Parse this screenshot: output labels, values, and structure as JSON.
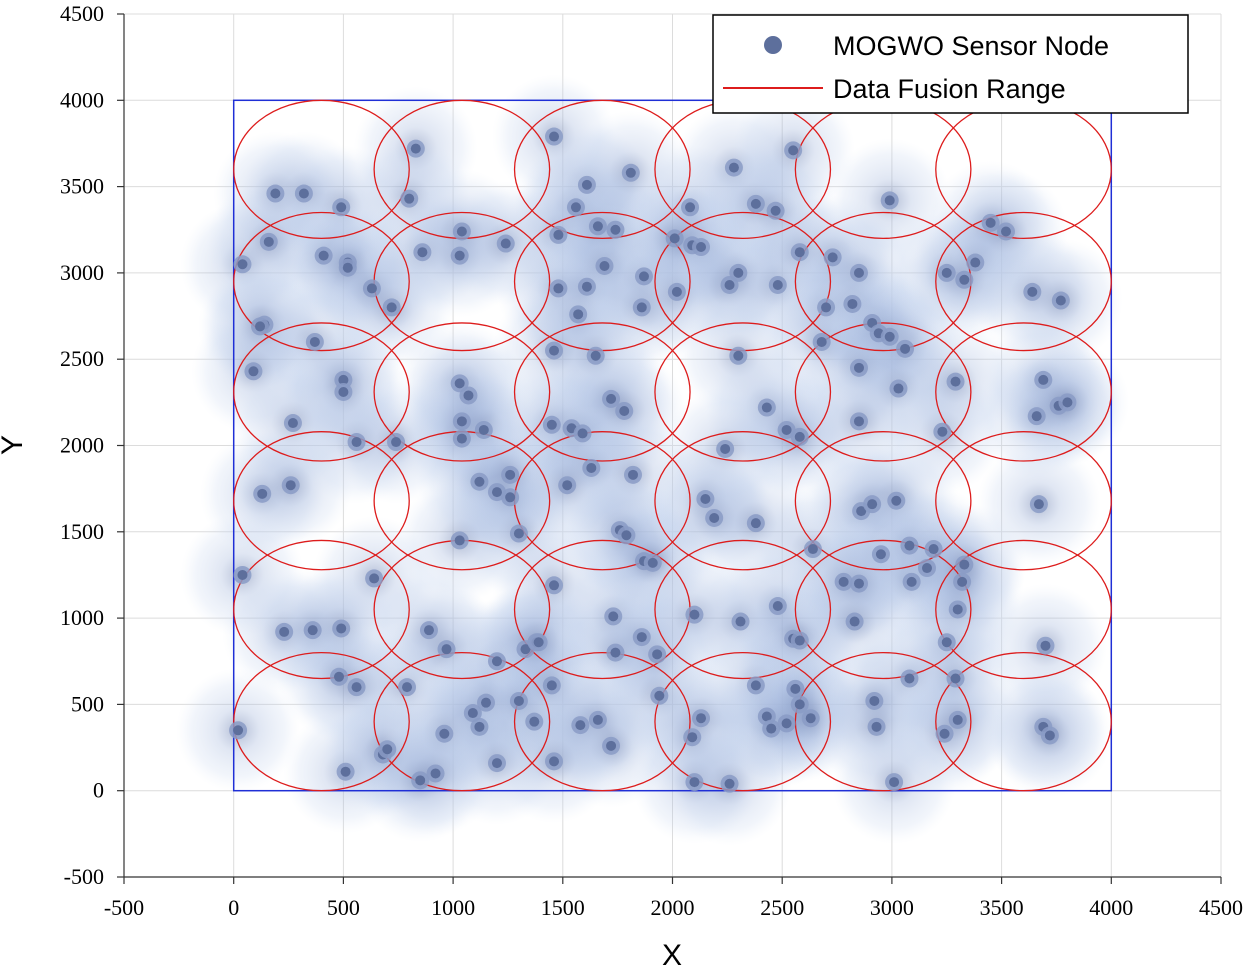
{
  "chart_data": {
    "type": "scatter",
    "title": "",
    "xlabel": "X",
    "ylabel": "Y",
    "xlim": [
      -500,
      4500
    ],
    "ylim": [
      -500,
      4500
    ],
    "x_ticks": [
      "-500",
      "0",
      "500",
      "1000",
      "1500",
      "2000",
      "2500",
      "3000",
      "3500",
      "4000",
      "4500"
    ],
    "y_ticks": [
      "-500",
      "0",
      "500",
      "1000",
      "1500",
      "2000",
      "2500",
      "3000",
      "3500",
      "4000",
      "4500"
    ],
    "grid": true,
    "legend_position": "top-right",
    "legend": {
      "nodes": "MOGWO Sensor Node",
      "range": "Data Fusion Range"
    },
    "colors": {
      "node": "#5d6f9c",
      "halo": "#bccdea",
      "fusion": "#dd1c1c",
      "boundary": "#1f2fd6",
      "grid": "#dcdcdc"
    },
    "region": {
      "x_min": 0,
      "x_max": 4000,
      "y_min": 0,
      "y_max": 4000
    },
    "fusion_range": {
      "semi_axis_x": 400,
      "semi_axis_y": 400,
      "centers_x": [
        400,
        1040,
        1680,
        2320,
        2960,
        3600
      ],
      "centers_y": [
        3600,
        2950,
        2310,
        1680,
        1050,
        400
      ]
    },
    "series": [
      {
        "name": "MOGWO Sensor Node",
        "points": [
          [
            40,
            3050
          ],
          [
            190,
            3460
          ],
          [
            320,
            3460
          ],
          [
            490,
            3380
          ],
          [
            410,
            3100
          ],
          [
            160,
            3180
          ],
          [
            520,
            3060
          ],
          [
            520,
            3030
          ],
          [
            630,
            2910
          ],
          [
            720,
            2800
          ],
          [
            140,
            2700
          ],
          [
            120,
            2690
          ],
          [
            370,
            2600
          ],
          [
            90,
            2430
          ],
          [
            500,
            2380
          ],
          [
            500,
            2310
          ],
          [
            270,
            2130
          ],
          [
            560,
            2020
          ],
          [
            740,
            2020
          ],
          [
            130,
            1720
          ],
          [
            260,
            1770
          ],
          [
            40,
            1250
          ],
          [
            640,
            1230
          ],
          [
            230,
            920
          ],
          [
            360,
            930
          ],
          [
            490,
            940
          ],
          [
            480,
            660
          ],
          [
            560,
            600
          ],
          [
            790,
            600
          ],
          [
            20,
            350
          ],
          [
            510,
            110
          ],
          [
            680,
            210
          ],
          [
            700,
            240
          ],
          [
            830,
            3720
          ],
          [
            800,
            3430
          ],
          [
            860,
            3120
          ],
          [
            1030,
            3100
          ],
          [
            1040,
            3240
          ],
          [
            1240,
            3170
          ],
          [
            1030,
            2360
          ],
          [
            1070,
            2290
          ],
          [
            1040,
            2140
          ],
          [
            1040,
            2040
          ],
          [
            1140,
            2090
          ],
          [
            1120,
            1790
          ],
          [
            1200,
            1730
          ],
          [
            1260,
            1700
          ],
          [
            1260,
            1830
          ],
          [
            1300,
            1490
          ],
          [
            1030,
            1450
          ],
          [
            890,
            930
          ],
          [
            970,
            820
          ],
          [
            1200,
            750
          ],
          [
            1330,
            820
          ],
          [
            1380,
            860
          ],
          [
            1090,
            450
          ],
          [
            1120,
            370
          ],
          [
            1150,
            510
          ],
          [
            1300,
            520
          ],
          [
            1370,
            400
          ],
          [
            960,
            330
          ],
          [
            1200,
            160
          ],
          [
            920,
            100
          ],
          [
            850,
            60
          ],
          [
            1460,
            3790
          ],
          [
            1610,
            3510
          ],
          [
            1560,
            3380
          ],
          [
            1480,
            3220
          ],
          [
            1480,
            2910
          ],
          [
            1610,
            2920
          ],
          [
            1570,
            2760
          ],
          [
            1460,
            2550
          ],
          [
            1660,
            3270
          ],
          [
            1740,
            3250
          ],
          [
            1810,
            3580
          ],
          [
            1690,
            3040
          ],
          [
            1870,
            2980
          ],
          [
            1860,
            2800
          ],
          [
            1450,
            2120
          ],
          [
            1540,
            2100
          ],
          [
            1590,
            2070
          ],
          [
            1650,
            2520
          ],
          [
            1720,
            2270
          ],
          [
            1780,
            2200
          ],
          [
            1630,
            1870
          ],
          [
            1520,
            1770
          ],
          [
            1820,
            1830
          ],
          [
            1760,
            1510
          ],
          [
            1790,
            1480
          ],
          [
            1870,
            1330
          ],
          [
            1910,
            1320
          ],
          [
            1460,
            1190
          ],
          [
            1390,
            860
          ],
          [
            1730,
            1010
          ],
          [
            1860,
            890
          ],
          [
            1740,
            800
          ],
          [
            1930,
            790
          ],
          [
            1450,
            610
          ],
          [
            1580,
            380
          ],
          [
            1660,
            410
          ],
          [
            1720,
            260
          ],
          [
            1460,
            170
          ],
          [
            1940,
            550
          ],
          [
            2080,
            3380
          ],
          [
            2090,
            3160
          ],
          [
            2130,
            3150
          ],
          [
            2020,
            2890
          ],
          [
            2010,
            3200
          ],
          [
            2300,
            3000
          ],
          [
            2260,
            2930
          ],
          [
            2280,
            3610
          ],
          [
            2380,
            3400
          ],
          [
            2470,
            3360
          ],
          [
            2550,
            3710
          ],
          [
            2480,
            2930
          ],
          [
            2300,
            2520
          ],
          [
            2430,
            2220
          ],
          [
            2520,
            2090
          ],
          [
            2580,
            2050
          ],
          [
            2240,
            1980
          ],
          [
            2150,
            1690
          ],
          [
            2190,
            1580
          ],
          [
            2380,
            1550
          ],
          [
            2640,
            1400
          ],
          [
            2100,
            1020
          ],
          [
            2310,
            980
          ],
          [
            2480,
            1070
          ],
          [
            2550,
            880
          ],
          [
            2580,
            870
          ],
          [
            2560,
            590
          ],
          [
            2380,
            610
          ],
          [
            2430,
            430
          ],
          [
            2450,
            360
          ],
          [
            2520,
            390
          ],
          [
            2580,
            500
          ],
          [
            2630,
            420
          ],
          [
            2130,
            420
          ],
          [
            2090,
            310
          ],
          [
            2100,
            50
          ],
          [
            2260,
            40
          ],
          [
            2580,
            3120
          ],
          [
            2730,
            3090
          ],
          [
            2700,
            2800
          ],
          [
            2850,
            3000
          ],
          [
            2820,
            2820
          ],
          [
            2910,
            2710
          ],
          [
            2680,
            2600
          ],
          [
            2940,
            2650
          ],
          [
            2990,
            2630
          ],
          [
            3060,
            2560
          ],
          [
            2990,
            3420
          ],
          [
            2850,
            2450
          ],
          [
            3030,
            2330
          ],
          [
            2850,
            2140
          ],
          [
            3230,
            2080
          ],
          [
            2860,
            1620
          ],
          [
            2910,
            1660
          ],
          [
            3020,
            1680
          ],
          [
            2950,
            1370
          ],
          [
            3080,
            1420
          ],
          [
            3190,
            1400
          ],
          [
            3160,
            1290
          ],
          [
            3090,
            1210
          ],
          [
            2780,
            1210
          ],
          [
            2850,
            1200
          ],
          [
            2830,
            980
          ],
          [
            3250,
            860
          ],
          [
            3300,
            1050
          ],
          [
            3320,
            1210
          ],
          [
            3330,
            1310
          ],
          [
            3080,
            650
          ],
          [
            3290,
            650
          ],
          [
            2920,
            520
          ],
          [
            2930,
            370
          ],
          [
            3240,
            330
          ],
          [
            3300,
            410
          ],
          [
            3010,
            50
          ],
          [
            3250,
            3000
          ],
          [
            3330,
            2960
          ],
          [
            3380,
            3060
          ],
          [
            3450,
            3290
          ],
          [
            3520,
            3240
          ],
          [
            3640,
            2890
          ],
          [
            3770,
            2840
          ],
          [
            3290,
            2370
          ],
          [
            3690,
            2380
          ],
          [
            3660,
            2170
          ],
          [
            3760,
            2230
          ],
          [
            3800,
            2250
          ],
          [
            3670,
            1660
          ],
          [
            3700,
            840
          ],
          [
            3690,
            370
          ],
          [
            3720,
            320
          ]
        ]
      }
    ]
  }
}
